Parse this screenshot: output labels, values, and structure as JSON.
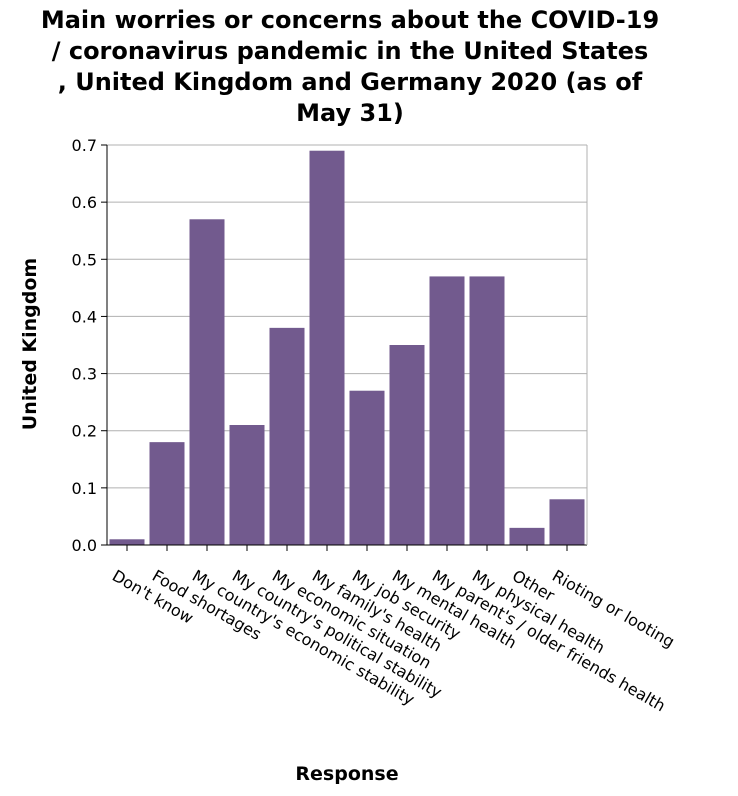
{
  "chart_data": {
    "type": "bar",
    "title_lines": [
      "Main worries or concerns about the COVID-19",
      "/ coronavirus pandemic in the United States",
      ", United Kingdom and Germany 2020 (as of",
      "May 31)"
    ],
    "xlabel": "Response",
    "ylabel": "United Kingdom",
    "ylim": [
      0,
      0.7
    ],
    "yticks": [
      "0.0",
      "0.1",
      "0.2",
      "0.3",
      "0.4",
      "0.5",
      "0.6",
      "0.7"
    ],
    "grid": true,
    "bar_color": "#725a8e",
    "categories": [
      "Don't know",
      "Food shortages",
      "My country's economic stability",
      "My country's political stability",
      "My economic situation",
      "My family's health",
      "My job security",
      "My mental health",
      "My parent's / older friends health",
      "My physical health",
      "Other",
      "Rioting or looting"
    ],
    "values": [
      0.01,
      0.18,
      0.57,
      0.21,
      0.38,
      0.69,
      0.27,
      0.35,
      0.47,
      0.47,
      0.03,
      0.08
    ]
  }
}
